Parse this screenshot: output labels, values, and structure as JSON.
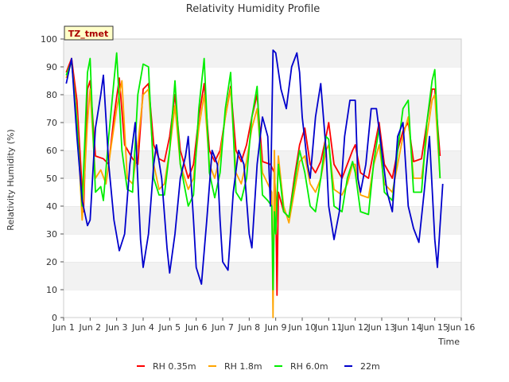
{
  "chart_data": {
    "type": "line",
    "title": "Relativity Humidity Profile",
    "xlabel": "Time",
    "ylabel": "Relativity Humidity (%)",
    "xlim": [
      1,
      16
    ],
    "ylim": [
      0,
      100
    ],
    "x_ticks": [
      1,
      2,
      3,
      4,
      5,
      6,
      7,
      8,
      9,
      10,
      11,
      12,
      13,
      14,
      15,
      16
    ],
    "x_tick_labels": [
      "Jun 1",
      "Jun 2",
      "Jun 3",
      "Jun 4",
      "Jun 5",
      "Jun 6",
      "Jun 7",
      "Jun 8",
      "Jun 9",
      "Jun 10",
      "Jun 11",
      "Jun 12",
      "Jun 13",
      "Jun 14",
      "Jun 15",
      "Jun 16"
    ],
    "y_ticks": [
      0,
      10,
      20,
      30,
      40,
      50,
      60,
      70,
      80,
      90,
      100
    ],
    "y_tick_labels": [
      "0",
      "10",
      "20",
      "30",
      "40",
      "50",
      "60",
      "70",
      "80",
      "90",
      "100"
    ],
    "badge": "TZ_tmet",
    "grid": "horizontal alternating bands",
    "legend_position": "bottom",
    "series": [
      {
        "name": "RH 0.35m",
        "color": "#ff0000",
        "points": [
          [
            1.1,
            88
          ],
          [
            1.3,
            93
          ],
          [
            1.5,
            78
          ],
          [
            1.75,
            38
          ],
          [
            1.9,
            82
          ],
          [
            2.0,
            85
          ],
          [
            2.2,
            58
          ],
          [
            2.5,
            57
          ],
          [
            2.7,
            55
          ],
          [
            2.9,
            72
          ],
          [
            3.1,
            86
          ],
          [
            3.3,
            62
          ],
          [
            3.6,
            57
          ],
          [
            3.8,
            55
          ],
          [
            4.0,
            82
          ],
          [
            4.2,
            84
          ],
          [
            4.4,
            62
          ],
          [
            4.6,
            57
          ],
          [
            4.8,
            56
          ],
          [
            5.0,
            65
          ],
          [
            5.2,
            80
          ],
          [
            5.4,
            60
          ],
          [
            5.7,
            50
          ],
          [
            5.9,
            55
          ],
          [
            6.1,
            72
          ],
          [
            6.3,
            84
          ],
          [
            6.5,
            60
          ],
          [
            6.7,
            56
          ],
          [
            6.9,
            60
          ],
          [
            7.1,
            72
          ],
          [
            7.3,
            83
          ],
          [
            7.5,
            60
          ],
          [
            7.7,
            56
          ],
          [
            7.9,
            62
          ],
          [
            8.1,
            72
          ],
          [
            8.3,
            80
          ],
          [
            8.5,
            56
          ],
          [
            8.8,
            55
          ],
          [
            8.95,
            52
          ],
          [
            9.0,
            42
          ],
          [
            9.05,
            8
          ],
          [
            9.1,
            45
          ],
          [
            9.3,
            38
          ],
          [
            9.5,
            36
          ],
          [
            9.7,
            50
          ],
          [
            9.9,
            62
          ],
          [
            10.1,
            68
          ],
          [
            10.3,
            55
          ],
          [
            10.5,
            52
          ],
          [
            10.7,
            56
          ],
          [
            10.9,
            65
          ],
          [
            11.0,
            70
          ],
          [
            11.2,
            55
          ],
          [
            11.5,
            50
          ],
          [
            11.7,
            55
          ],
          [
            11.9,
            60
          ],
          [
            12.0,
            62
          ],
          [
            12.2,
            52
          ],
          [
            12.5,
            50
          ],
          [
            12.7,
            60
          ],
          [
            12.9,
            70
          ],
          [
            13.1,
            55
          ],
          [
            13.4,
            50
          ],
          [
            13.6,
            60
          ],
          [
            13.8,
            67
          ],
          [
            14.0,
            70
          ],
          [
            14.2,
            56
          ],
          [
            14.5,
            57
          ],
          [
            14.7,
            70
          ],
          [
            14.9,
            82
          ],
          [
            15.0,
            82
          ],
          [
            15.2,
            58
          ]
        ]
      },
      {
        "name": "RH 1.8m",
        "color": "#ffa500",
        "points": [
          [
            1.1,
            86
          ],
          [
            1.3,
            92
          ],
          [
            1.5,
            72
          ],
          [
            1.7,
            35
          ],
          [
            1.9,
            70
          ],
          [
            2.0,
            82
          ],
          [
            2.2,
            50
          ],
          [
            2.4,
            53
          ],
          [
            2.6,
            48
          ],
          [
            2.8,
            62
          ],
          [
            3.0,
            75
          ],
          [
            3.2,
            85
          ],
          [
            3.4,
            50
          ],
          [
            3.6,
            48
          ],
          [
            3.8,
            62
          ],
          [
            4.0,
            80
          ],
          [
            4.2,
            82
          ],
          [
            4.4,
            55
          ],
          [
            4.6,
            46
          ],
          [
            4.8,
            48
          ],
          [
            5.0,
            60
          ],
          [
            5.2,
            76
          ],
          [
            5.4,
            55
          ],
          [
            5.7,
            46
          ],
          [
            5.9,
            50
          ],
          [
            6.1,
            68
          ],
          [
            6.3,
            80
          ],
          [
            6.5,
            55
          ],
          [
            6.7,
            50
          ],
          [
            6.9,
            58
          ],
          [
            7.1,
            72
          ],
          [
            7.3,
            82
          ],
          [
            7.5,
            52
          ],
          [
            7.7,
            48
          ],
          [
            7.9,
            56
          ],
          [
            8.1,
            68
          ],
          [
            8.3,
            75
          ],
          [
            8.5,
            52
          ],
          [
            8.7,
            48
          ],
          [
            8.85,
            45
          ],
          [
            8.9,
            0
          ],
          [
            8.95,
            60
          ],
          [
            9.0,
            30
          ],
          [
            9.1,
            58
          ],
          [
            9.3,
            40
          ],
          [
            9.5,
            34
          ],
          [
            9.7,
            45
          ],
          [
            9.9,
            56
          ],
          [
            10.1,
            58
          ],
          [
            10.3,
            48
          ],
          [
            10.5,
            45
          ],
          [
            10.7,
            50
          ],
          [
            10.9,
            60
          ],
          [
            11.0,
            62
          ],
          [
            11.2,
            46
          ],
          [
            11.5,
            44
          ],
          [
            11.7,
            48
          ],
          [
            11.9,
            55
          ],
          [
            12.0,
            55
          ],
          [
            12.2,
            44
          ],
          [
            12.5,
            43
          ],
          [
            12.7,
            55
          ],
          [
            12.9,
            62
          ],
          [
            13.1,
            48
          ],
          [
            13.4,
            45
          ],
          [
            13.6,
            55
          ],
          [
            13.8,
            65
          ],
          [
            14.0,
            72
          ],
          [
            14.2,
            50
          ],
          [
            14.5,
            50
          ],
          [
            14.7,
            65
          ],
          [
            14.9,
            78
          ],
          [
            15.0,
            80
          ],
          [
            15.2,
            50
          ]
        ]
      },
      {
        "name": "RH 6.0m",
        "color": "#00ee00",
        "points": [
          [
            1.1,
            87
          ],
          [
            1.3,
            92
          ],
          [
            1.5,
            70
          ],
          [
            1.7,
            40
          ],
          [
            1.9,
            88
          ],
          [
            2.0,
            93
          ],
          [
            2.2,
            45
          ],
          [
            2.4,
            47
          ],
          [
            2.5,
            42
          ],
          [
            2.7,
            65
          ],
          [
            2.9,
            85
          ],
          [
            3.0,
            95
          ],
          [
            3.2,
            60
          ],
          [
            3.4,
            46
          ],
          [
            3.6,
            45
          ],
          [
            3.8,
            80
          ],
          [
            4.0,
            91
          ],
          [
            4.2,
            90
          ],
          [
            4.4,
            50
          ],
          [
            4.6,
            44
          ],
          [
            4.8,
            44
          ],
          [
            5.0,
            60
          ],
          [
            5.2,
            85
          ],
          [
            5.4,
            55
          ],
          [
            5.7,
            40
          ],
          [
            5.9,
            44
          ],
          [
            6.1,
            75
          ],
          [
            6.3,
            93
          ],
          [
            6.5,
            52
          ],
          [
            6.7,
            43
          ],
          [
            6.9,
            52
          ],
          [
            7.1,
            75
          ],
          [
            7.3,
            88
          ],
          [
            7.5,
            45
          ],
          [
            7.7,
            42
          ],
          [
            7.9,
            50
          ],
          [
            8.1,
            72
          ],
          [
            8.3,
            83
          ],
          [
            8.5,
            44
          ],
          [
            8.7,
            42
          ],
          [
            8.85,
            40
          ],
          [
            8.9,
            10
          ],
          [
            8.95,
            38
          ],
          [
            9.0,
            30
          ],
          [
            9.1,
            55
          ],
          [
            9.3,
            38
          ],
          [
            9.5,
            36
          ],
          [
            9.7,
            48
          ],
          [
            9.9,
            60
          ],
          [
            10.1,
            52
          ],
          [
            10.3,
            40
          ],
          [
            10.5,
            38
          ],
          [
            10.7,
            50
          ],
          [
            10.9,
            65
          ],
          [
            11.0,
            64
          ],
          [
            11.2,
            40
          ],
          [
            11.5,
            38
          ],
          [
            11.7,
            50
          ],
          [
            11.9,
            56
          ],
          [
            12.0,
            52
          ],
          [
            12.2,
            38
          ],
          [
            12.5,
            37
          ],
          [
            12.7,
            56
          ],
          [
            12.9,
            68
          ],
          [
            13.1,
            45
          ],
          [
            13.4,
            42
          ],
          [
            13.6,
            60
          ],
          [
            13.8,
            75
          ],
          [
            14.0,
            78
          ],
          [
            14.2,
            45
          ],
          [
            14.5,
            45
          ],
          [
            14.7,
            70
          ],
          [
            14.9,
            85
          ],
          [
            15.0,
            89
          ],
          [
            15.2,
            50
          ]
        ]
      },
      {
        "name": "22m",
        "color": "#0000cc",
        "points": [
          [
            1.1,
            84
          ],
          [
            1.3,
            93
          ],
          [
            1.5,
            65
          ],
          [
            1.7,
            42
          ],
          [
            1.9,
            33
          ],
          [
            2.0,
            35
          ],
          [
            2.2,
            68
          ],
          [
            2.4,
            80
          ],
          [
            2.5,
            87
          ],
          [
            2.7,
            55
          ],
          [
            2.9,
            35
          ],
          [
            3.1,
            24
          ],
          [
            3.3,
            30
          ],
          [
            3.5,
            55
          ],
          [
            3.7,
            70
          ],
          [
            3.9,
            28
          ],
          [
            4.0,
            18
          ],
          [
            4.2,
            30
          ],
          [
            4.4,
            55
          ],
          [
            4.5,
            62
          ],
          [
            4.7,
            50
          ],
          [
            4.9,
            25
          ],
          [
            5.0,
            16
          ],
          [
            5.2,
            30
          ],
          [
            5.4,
            50
          ],
          [
            5.6,
            58
          ],
          [
            5.7,
            65
          ],
          [
            5.9,
            35
          ],
          [
            6.0,
            18
          ],
          [
            6.2,
            12
          ],
          [
            6.4,
            35
          ],
          [
            6.6,
            60
          ],
          [
            6.8,
            55
          ],
          [
            6.9,
            35
          ],
          [
            7.0,
            20
          ],
          [
            7.2,
            17
          ],
          [
            7.4,
            45
          ],
          [
            7.6,
            60
          ],
          [
            7.8,
            55
          ],
          [
            8.0,
            30
          ],
          [
            8.1,
            25
          ],
          [
            8.3,
            55
          ],
          [
            8.5,
            72
          ],
          [
            8.7,
            65
          ],
          [
            8.8,
            40
          ],
          [
            8.9,
            96
          ],
          [
            9.0,
            95
          ],
          [
            9.2,
            82
          ],
          [
            9.4,
            75
          ],
          [
            9.6,
            90
          ],
          [
            9.8,
            95
          ],
          [
            9.9,
            88
          ],
          [
            10.0,
            72
          ],
          [
            10.2,
            55
          ],
          [
            10.3,
            50
          ],
          [
            10.5,
            72
          ],
          [
            10.7,
            84
          ],
          [
            10.9,
            60
          ],
          [
            11.0,
            40
          ],
          [
            11.2,
            28
          ],
          [
            11.4,
            38
          ],
          [
            11.6,
            65
          ],
          [
            11.8,
            78
          ],
          [
            12.0,
            78
          ],
          [
            12.1,
            50
          ],
          [
            12.2,
            45
          ],
          [
            12.4,
            55
          ],
          [
            12.6,
            75
          ],
          [
            12.8,
            75
          ],
          [
            13.0,
            60
          ],
          [
            13.2,
            45
          ],
          [
            13.4,
            38
          ],
          [
            13.6,
            65
          ],
          [
            13.8,
            70
          ],
          [
            14.0,
            40
          ],
          [
            14.2,
            32
          ],
          [
            14.4,
            27
          ],
          [
            14.6,
            45
          ],
          [
            14.8,
            65
          ],
          [
            15.0,
            28
          ],
          [
            15.1,
            18
          ],
          [
            15.2,
            33
          ],
          [
            15.3,
            48
          ]
        ]
      }
    ]
  }
}
